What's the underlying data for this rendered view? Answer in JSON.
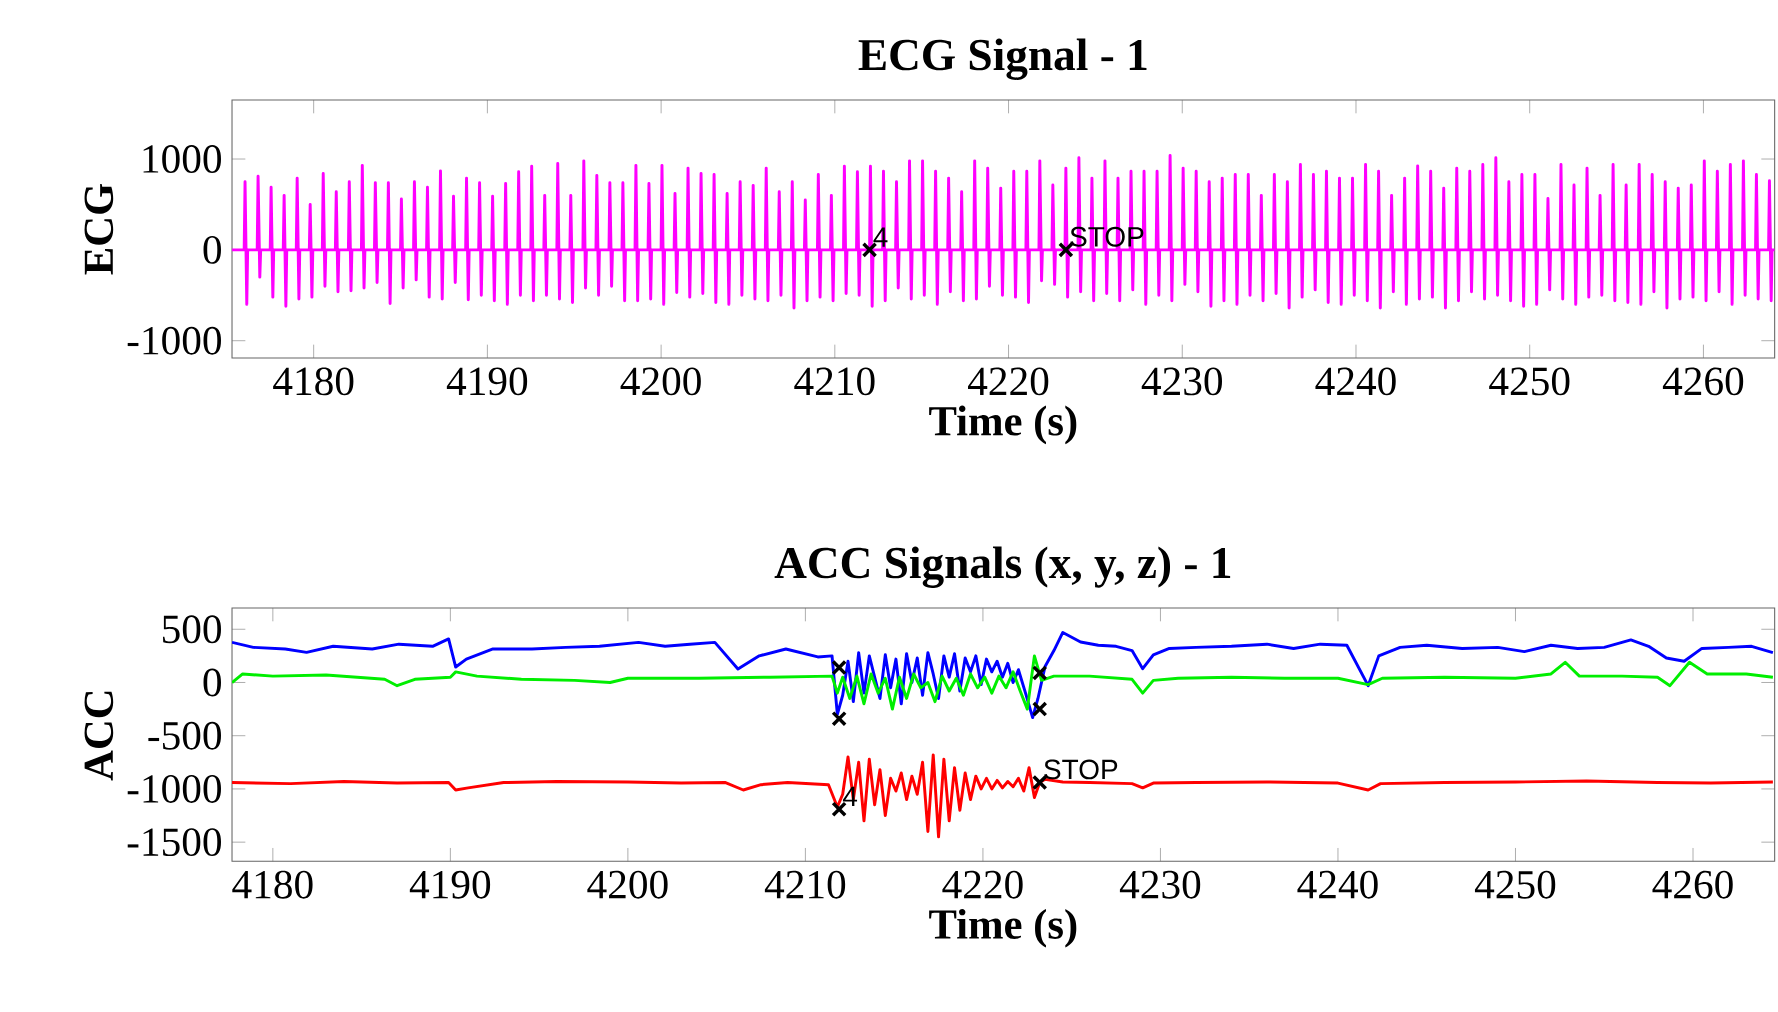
{
  "chart_data": [
    {
      "type": "line",
      "title": "ECG Signal - 1",
      "xlabel": "Time (s)",
      "ylabel": "ECG",
      "xlim": [
        4175.3,
        4264.1
      ],
      "ylim": [
        -1190,
        1650
      ],
      "xticks": [
        4180,
        4190,
        4200,
        4210,
        4220,
        4230,
        4240,
        4250,
        4260
      ],
      "yticks": [
        -1000,
        0,
        1000
      ],
      "series": [
        {
          "color": "#ff00ff",
          "x": [
            4175.3,
            4176,
            4176.05,
            4176.15,
            4176.2,
            4176.75,
            4176.8,
            4176.9,
            4176.95,
            4177.5,
            4177.55,
            4177.65,
            4177.7,
            4178.25,
            4178.3,
            4178.4,
            4178.45,
            4179,
            4179.05,
            4179.15,
            4179.2,
            4179.75,
            4179.8,
            4179.9,
            4179.95,
            4180.5,
            4180.55,
            4180.65,
            4180.7,
            4181.25,
            4181.3,
            4181.4,
            4181.45,
            4182,
            4182.05,
            4182.15,
            4182.2,
            4182.75,
            4182.8,
            4182.9,
            4182.95,
            4183.5,
            4183.55,
            4183.65,
            4183.7,
            4184.25,
            4184.3,
            4184.4,
            4184.45,
            4185,
            4185.05,
            4185.15,
            4185.2,
            4185.75,
            4185.8,
            4185.9,
            4185.95,
            4186.5,
            4186.55,
            4186.65,
            4186.7,
            4187.25,
            4187.3,
            4187.4,
            4187.45,
            4188,
            4188.05,
            4188.15,
            4188.2,
            4188.75,
            4188.8,
            4188.9,
            4188.95,
            4189.5,
            4189.55,
            4189.65,
            4189.7,
            4190.25,
            4190.3,
            4190.4,
            4190.45,
            4191,
            4191.05,
            4191.15,
            4191.2,
            4191.75,
            4191.8,
            4191.9,
            4191.95,
            4192.5,
            4192.55,
            4192.65,
            4192.7,
            4193.25,
            4193.3,
            4193.4,
            4193.45,
            4194,
            4194.05,
            4194.15,
            4194.2,
            4194.75,
            4194.8,
            4194.9,
            4194.95,
            4195.5,
            4195.55,
            4195.65,
            4195.7,
            4196.25,
            4196.3,
            4196.4,
            4196.45,
            4197,
            4197.05,
            4197.15,
            4197.2,
            4197.75,
            4197.8,
            4197.9,
            4197.95,
            4198.5,
            4198.55,
            4198.65,
            4198.7,
            4199.25,
            4199.3,
            4199.4,
            4199.45,
            4200,
            4200.05,
            4200.15,
            4200.2,
            4200.75,
            4200.8,
            4200.9,
            4200.95,
            4201.5,
            4201.55,
            4201.65,
            4201.7,
            4202.25,
            4202.3,
            4202.4,
            4202.45,
            4203,
            4203.05,
            4203.15,
            4203.2,
            4203.75,
            4203.8,
            4203.9,
            4203.95,
            4204.5,
            4204.55,
            4204.65,
            4204.7,
            4205.25,
            4205.3,
            4205.4,
            4205.45,
            4206,
            4206.05,
            4206.15,
            4206.2,
            4206.75,
            4206.8,
            4206.9,
            4206.95,
            4207.5,
            4207.55,
            4207.65,
            4207.7,
            4208.25,
            4208.3,
            4208.4,
            4208.45,
            4209,
            4209.05,
            4209.15,
            4209.2,
            4209.75,
            4209.8,
            4209.9,
            4209.95,
            4210.5,
            4210.55,
            4210.65,
            4210.7,
            4211.25,
            4211.3,
            4211.4,
            4211.45,
            4212,
            4212.05,
            4212.15,
            4212.2,
            4212.75,
            4212.8,
            4212.9,
            4212.95,
            4213.5,
            4213.55,
            4213.65,
            4213.7,
            4214.25,
            4214.3,
            4214.4,
            4214.45,
            4215,
            4215.05,
            4215.15,
            4215.2,
            4215.75,
            4215.8,
            4215.9,
            4215.95,
            4216.5,
            4216.55,
            4216.65,
            4216.7,
            4217.25,
            4217.3,
            4217.4,
            4217.45,
            4218,
            4218.05,
            4218.15,
            4218.2,
            4218.75,
            4218.8,
            4218.9,
            4218.95,
            4219.5,
            4219.55,
            4219.65,
            4219.7,
            4220.25,
            4220.3,
            4220.4,
            4220.45,
            4221,
            4221.05,
            4221.15,
            4221.2,
            4221.75,
            4221.8,
            4221.9,
            4221.95,
            4222.5,
            4222.55,
            4222.65,
            4222.7,
            4223.25,
            4223.3,
            4223.4,
            4223.45,
            4224,
            4224.05,
            4224.15,
            4224.2,
            4224.75,
            4224.8,
            4224.9,
            4224.95,
            4225.5,
            4225.55,
            4225.65,
            4225.7,
            4226.25,
            4226.3,
            4226.4,
            4226.45,
            4227,
            4227.05,
            4227.15,
            4227.2,
            4227.75,
            4227.8,
            4227.9,
            4227.95,
            4228.5,
            4228.55,
            4228.65,
            4228.7,
            4229.25,
            4229.3,
            4229.4,
            4229.45,
            4230,
            4230.05,
            4230.15,
            4230.2,
            4230.75,
            4230.8,
            4230.9,
            4230.95,
            4231.5,
            4231.55,
            4231.65,
            4231.7,
            4232.25,
            4232.3,
            4232.4,
            4232.45,
            4233,
            4233.05,
            4233.15,
            4233.2,
            4233.75,
            4233.8,
            4233.9,
            4233.95,
            4234.5,
            4234.55,
            4234.65,
            4234.7,
            4235.25,
            4235.3,
            4235.4,
            4235.45,
            4236,
            4236.05,
            4236.15,
            4236.2,
            4236.75,
            4236.8,
            4236.9,
            4236.95,
            4237.5,
            4237.55,
            4237.65,
            4237.7,
            4238.25,
            4238.3,
            4238.4,
            4238.45,
            4239,
            4239.05,
            4239.15,
            4239.2,
            4239.75,
            4239.8,
            4239.9,
            4239.95,
            4240.5,
            4240.55,
            4240.65,
            4240.7,
            4241.25,
            4241.3,
            4241.4,
            4241.45,
            4242,
            4242.05,
            4242.15,
            4242.2,
            4242.75,
            4242.8,
            4242.9,
            4242.95,
            4243.5,
            4243.55,
            4243.65,
            4243.7,
            4244.25,
            4244.3,
            4244.4,
            4244.45,
            4245,
            4245.05,
            4245.15,
            4245.2,
            4245.75,
            4245.8,
            4245.9,
            4245.95,
            4246.5,
            4246.55,
            4246.65,
            4246.7,
            4247.25,
            4247.3,
            4247.4,
            4247.45,
            4248,
            4248.05,
            4248.15,
            4248.2,
            4248.75,
            4248.8,
            4248.9,
            4248.95,
            4249.5,
            4249.55,
            4249.65,
            4249.7,
            4250.25,
            4250.3,
            4250.4,
            4250.45,
            4251,
            4251.05,
            4251.15,
            4251.2,
            4251.75,
            4251.8,
            4251.9,
            4251.95,
            4252.5,
            4252.55,
            4252.65,
            4252.7,
            4253.25,
            4253.3,
            4253.4,
            4253.45,
            4254,
            4254.05,
            4254.15,
            4254.2,
            4254.75,
            4254.8,
            4254.9,
            4254.95,
            4255.5,
            4255.55,
            4255.65,
            4255.7,
            4256.25,
            4256.3,
            4256.4,
            4256.45,
            4257,
            4257.05,
            4257.15,
            4257.2,
            4257.75,
            4257.8,
            4257.9,
            4257.95,
            4258.5,
            4258.55,
            4258.65,
            4258.7,
            4259.25,
            4259.3,
            4259.4,
            4259.45,
            4260,
            4260.05,
            4260.15,
            4260.2,
            4260.75,
            4260.8,
            4260.9,
            4260.95,
            4261.5,
            4261.55,
            4261.65,
            4261.7,
            4262.25,
            4262.3,
            4262.4,
            4262.45,
            4263,
            4263.05,
            4263.15,
            4263.2,
            4263.75,
            4263.8,
            4263.9,
            4263.95,
            4264.1
          ],
          "values": [
            0,
            0,
            750,
            -600,
            0,
            0,
            810,
            -300,
            0,
            0,
            690,
            -520,
            0,
            0,
            600,
            -620,
            0,
            0,
            790,
            -540,
            0,
            0,
            500,
            -520,
            0,
            0,
            840,
            -400,
            0,
            0,
            640,
            -460,
            0,
            0,
            750,
            -450,
            0,
            0,
            930,
            -420,
            0,
            0,
            740,
            -360,
            0,
            0,
            740,
            -590,
            0,
            0,
            560,
            -420,
            0,
            0,
            750,
            -330,
            0,
            0,
            690,
            -520,
            0,
            0,
            870,
            -540,
            0,
            0,
            590,
            -360,
            0,
            0,
            790,
            -550,
            0,
            0,
            740,
            -500,
            0,
            0,
            590,
            -560,
            0,
            0,
            730,
            -600,
            0,
            0,
            860,
            -500,
            0,
            0,
            920,
            -560,
            0,
            0,
            600,
            -500,
            0,
            0,
            950,
            -540,
            0,
            0,
            600,
            -580,
            0,
            0,
            980,
            -420,
            0,
            0,
            820,
            -500,
            0,
            0,
            740,
            -400,
            0,
            0,
            740,
            -560,
            0,
            0,
            930,
            -560,
            0,
            0,
            730,
            -540,
            0,
            0,
            930,
            -600,
            0,
            0,
            620,
            -470,
            0,
            0,
            900,
            -520,
            0,
            0,
            840,
            -480,
            0,
            0,
            830,
            -580,
            0,
            0,
            620,
            -600,
            0,
            0,
            750,
            -500,
            0,
            0,
            710,
            -540,
            0,
            0,
            900,
            -560,
            0,
            0,
            640,
            -500,
            0,
            0,
            750,
            -640,
            0,
            0,
            550,
            -560,
            0,
            0,
            830,
            -520,
            0,
            0,
            600,
            -560,
            0,
            0,
            920,
            -480,
            0,
            0,
            860,
            -500,
            0,
            0,
            920,
            -620,
            0,
            0,
            865,
            -560,
            0,
            0,
            750,
            -420,
            0,
            0,
            980,
            -540,
            0,
            0,
            980,
            -500,
            0,
            0,
            865,
            -600,
            0,
            0,
            790,
            -460,
            0,
            0,
            640,
            -560,
            0,
            0,
            980,
            -540,
            0,
            0,
            900,
            -400,
            0,
            0,
            680,
            -500,
            0,
            0,
            865,
            -520,
            0,
            0,
            865,
            -580,
            0,
            0,
            980,
            -340,
            0,
            0,
            715,
            -380,
            0,
            0,
            900,
            -520,
            0,
            0,
            1015,
            -460,
            0,
            0,
            790,
            -560,
            0,
            0,
            980,
            -480,
            0,
            0,
            790,
            -560,
            0,
            0,
            865,
            -440,
            0,
            0,
            865,
            -600,
            0,
            0,
            865,
            -500,
            0,
            0,
            1040,
            -560,
            0,
            0,
            900,
            -380,
            0,
            0,
            865,
            -460,
            0,
            0,
            750,
            -620,
            0,
            0,
            790,
            -560,
            0,
            0,
            830,
            -600,
            0,
            0,
            830,
            -500,
            0,
            0,
            600,
            -560,
            0,
            0,
            830,
            -480,
            0,
            0,
            750,
            -640,
            0,
            0,
            940,
            -520,
            0,
            0,
            830,
            -440,
            0,
            0,
            865,
            -580,
            0,
            0,
            790,
            -600,
            0,
            0,
            790,
            -500,
            0,
            0,
            940,
            -560,
            0,
            0,
            865,
            -640,
            0,
            0,
            600,
            -460,
            0,
            0,
            790,
            -600,
            0,
            0,
            925,
            -540,
            0,
            0,
            865,
            -520,
            0,
            0,
            680,
            -640,
            0,
            0,
            900,
            -560,
            0,
            0,
            865,
            -460,
            0,
            0,
            940,
            -540,
            0,
            0,
            1015,
            -500,
            0,
            0,
            750,
            -560,
            0,
            0,
            830,
            -620,
            0,
            0,
            830,
            -600,
            0,
            0,
            565,
            -440,
            0,
            0,
            940,
            -540,
            0,
            0,
            715,
            -600,
            0,
            0,
            900,
            -520,
            0,
            0,
            600,
            -500,
            0,
            0,
            940,
            -560,
            0,
            0,
            715,
            -580,
            0,
            0,
            940,
            -600,
            0,
            0,
            830,
            -460,
            0,
            0,
            750,
            -640,
            0,
            0,
            680,
            -540,
            0,
            0,
            715,
            -520,
            0,
            0,
            980,
            -560,
            0,
            0,
            865,
            -460,
            0,
            0,
            940,
            -600,
            0,
            0,
            980,
            -500,
            0,
            0,
            830,
            -540,
            0,
            0,
            760,
            -560,
            0,
            0
          ]
        },
        {
          "type": "scatter",
          "color": "#000000",
          "marker": "cross",
          "x": [
            4212.0,
            4223.3
          ],
          "values": [
            0,
            0
          ]
        }
      ],
      "annotations": [
        {
          "text": "4",
          "x": 4212.0,
          "y": 0
        },
        {
          "text": "STOP",
          "x": 4223.3,
          "y": 0
        }
      ]
    },
    {
      "type": "line",
      "title": "ACC Signals (x, y, z) - 1",
      "xlabel": "Time (s)",
      "ylabel": "ACC",
      "xlim": [
        4177.7,
        4264.6
      ],
      "ylim": [
        -1680,
        700
      ],
      "xticks": [
        4180,
        4190,
        4200,
        4210,
        4220,
        4230,
        4240,
        4250,
        4260
      ],
      "yticks": [
        -1500,
        -1000,
        -500,
        0,
        500
      ],
      "series": [
        {
          "color": "#0000ff",
          "x": [
            4177.7,
            4178.9,
            4180.7,
            4181.9,
            4183.4,
            4185.6,
            4187.1,
            4189.0,
            4189.9,
            4190.3,
            4190.9,
            4192.4,
            4194.6,
            4196.5,
            4198.4,
            4200.6,
            4202.1,
            4203.5,
            4204.9,
            4206.2,
            4207.4,
            4208.9,
            4210.7,
            4211.5,
            4211.8,
            4212.1,
            4212.4,
            4212.7,
            4213.0,
            4213.3,
            4213.6,
            4213.9,
            4214.2,
            4214.5,
            4214.8,
            4215.1,
            4215.4,
            4215.7,
            4216.0,
            4216.3,
            4216.6,
            4216.9,
            4217.2,
            4217.5,
            4217.8,
            4218.1,
            4218.4,
            4218.7,
            4219.0,
            4219.3,
            4219.6,
            4219.9,
            4220.2,
            4220.5,
            4220.8,
            4221.1,
            4221.4,
            4221.7,
            4222.0,
            4222.4,
            4222.8,
            4223.1,
            4223.5,
            4224.0,
            4224.5,
            4225.5,
            4226.5,
            4227.5,
            4228.4,
            4229.0,
            4229.6,
            4230.5,
            4232.0,
            4234.0,
            4236.0,
            4237.5,
            4239.0,
            4240.5,
            4241.7,
            4242.3,
            4243.5,
            4245.0,
            4247.0,
            4249.0,
            4250.5,
            4252.0,
            4253.5,
            4255.0,
            4256.5,
            4257.5,
            4258.5,
            4259.5,
            4260.5,
            4262.0,
            4263.3,
            4264.5
          ],
          "values": [
            377,
            330,
            315,
            283,
            340,
            315,
            360,
            340,
            409,
            145,
            220,
            315,
            315,
            330,
            340,
            377,
            340,
            360,
            377,
            126,
            250,
            315,
            240,
            250,
            -300,
            -120,
            200,
            -180,
            280,
            -100,
            250,
            50,
            -150,
            260,
            -50,
            220,
            -200,
            270,
            0,
            230,
            -120,
            280,
            80,
            -150,
            250,
            50,
            270,
            -80,
            230,
            100,
            250,
            -20,
            220,
            100,
            200,
            50,
            180,
            0,
            120,
            -100,
            -330,
            -150,
            150,
            300,
            470,
            380,
            350,
            340,
            300,
            130,
            260,
            320,
            330,
            340,
            360,
            320,
            360,
            350,
            -30,
            250,
            330,
            350,
            320,
            330,
            290,
            350,
            320,
            330,
            400,
            340,
            230,
            200,
            320,
            330,
            340,
            280
          ]
        },
        {
          "color": "#00ee00",
          "x": [
            4177.7,
            4178.3,
            4180.0,
            4183.0,
            4186.3,
            4187.0,
            4188.0,
            4190.0,
            4190.3,
            4191.5,
            4194.0,
            4197.0,
            4199.0,
            4200.0,
            4204.0,
            4208.0,
            4211.5,
            4211.8,
            4212.1,
            4212.5,
            4212.9,
            4213.3,
            4213.7,
            4214.1,
            4214.5,
            4214.9,
            4215.3,
            4215.7,
            4216.1,
            4216.5,
            4216.9,
            4217.3,
            4217.7,
            4218.1,
            4218.5,
            4218.9,
            4219.3,
            4219.7,
            4220.1,
            4220.5,
            4220.9,
            4221.3,
            4221.7,
            4222.1,
            4222.5,
            4222.9,
            4223.3,
            4224.0,
            4226.0,
            4228.4,
            4229.0,
            4229.6,
            4231.0,
            4234.0,
            4237.0,
            4240.0,
            4241.7,
            4242.5,
            4246.0,
            4250.0,
            4252.0,
            4252.8,
            4253.6,
            4256.0,
            4258.0,
            4258.7,
            4259.8,
            4260.8,
            4263.0,
            4264.5
          ],
          "values": [
            0,
            80,
            60,
            70,
            30,
            -30,
            30,
            50,
            100,
            60,
            30,
            20,
            0,
            40,
            40,
            50,
            60,
            -100,
            50,
            -150,
            60,
            -200,
            80,
            -100,
            40,
            -250,
            50,
            -150,
            80,
            -50,
            0,
            -180,
            60,
            -80,
            40,
            -120,
            80,
            -50,
            50,
            -100,
            60,
            -50,
            100,
            -80,
            -250,
            250,
            20,
            60,
            60,
            30,
            -100,
            20,
            40,
            50,
            40,
            40,
            -20,
            40,
            50,
            40,
            80,
            190,
            60,
            60,
            50,
            -30,
            190,
            80,
            80,
            50
          ]
        },
        {
          "color": "#ff0000",
          "x": [
            4177.7,
            4181.0,
            4184.0,
            4187.0,
            4189.9,
            4190.3,
            4191.0,
            4193.0,
            4196.0,
            4200.0,
            4203.0,
            4205.5,
            4206.5,
            4207.5,
            4209.0,
            4211.3,
            4211.8,
            4212.1,
            4212.4,
            4212.7,
            4213.0,
            4213.3,
            4213.6,
            4213.9,
            4214.2,
            4214.5,
            4214.8,
            4215.1,
            4215.4,
            4215.7,
            4216.0,
            4216.3,
            4216.6,
            4216.9,
            4217.2,
            4217.5,
            4217.8,
            4218.1,
            4218.4,
            4218.7,
            4219.0,
            4219.3,
            4219.6,
            4219.9,
            4220.2,
            4220.5,
            4220.8,
            4221.1,
            4221.4,
            4221.7,
            4222.0,
            4222.3,
            4222.6,
            4222.9,
            4223.2,
            4223.5,
            4224.5,
            4226.0,
            4228.4,
            4229.0,
            4229.6,
            4232.0,
            4236.0,
            4240.0,
            4241.7,
            4242.4,
            4246.0,
            4250.0,
            4254.0,
            4258.0,
            4261.0,
            4264.5
          ],
          "values": [
            -940,
            -950,
            -930,
            -945,
            -940,
            -1010,
            -990,
            -940,
            -930,
            -935,
            -945,
            -940,
            -1010,
            -960,
            -940,
            -960,
            -1170,
            -1050,
            -700,
            -1100,
            -750,
            -1300,
            -720,
            -1150,
            -820,
            -1250,
            -900,
            -1020,
            -850,
            -1100,
            -880,
            -1050,
            -750,
            -1400,
            -680,
            -1450,
            -720,
            -1300,
            -800,
            -1200,
            -850,
            -1100,
            -880,
            -1000,
            -900,
            -1000,
            -920,
            -990,
            -930,
            -980,
            -900,
            -1020,
            -800,
            -1080,
            -940,
            -910,
            -935,
            -940,
            -950,
            -990,
            -945,
            -940,
            -935,
            -945,
            -1010,
            -950,
            -940,
            -935,
            -925,
            -940,
            -945,
            -935
          ]
        },
        {
          "type": "scatter",
          "color": "#000000",
          "marker": "cross",
          "x": [
            4211.9,
            4211.9,
            4211.9,
            4223.2,
            4223.2,
            4223.2
          ],
          "values": [
            140,
            -340,
            -1190,
            90,
            -250,
            -940
          ]
        }
      ],
      "annotations": [
        {
          "text": "4",
          "x": 4211.9,
          "y": -1190
        },
        {
          "text": "STOP",
          "x": 4223.2,
          "y": -940
        }
      ]
    }
  ]
}
